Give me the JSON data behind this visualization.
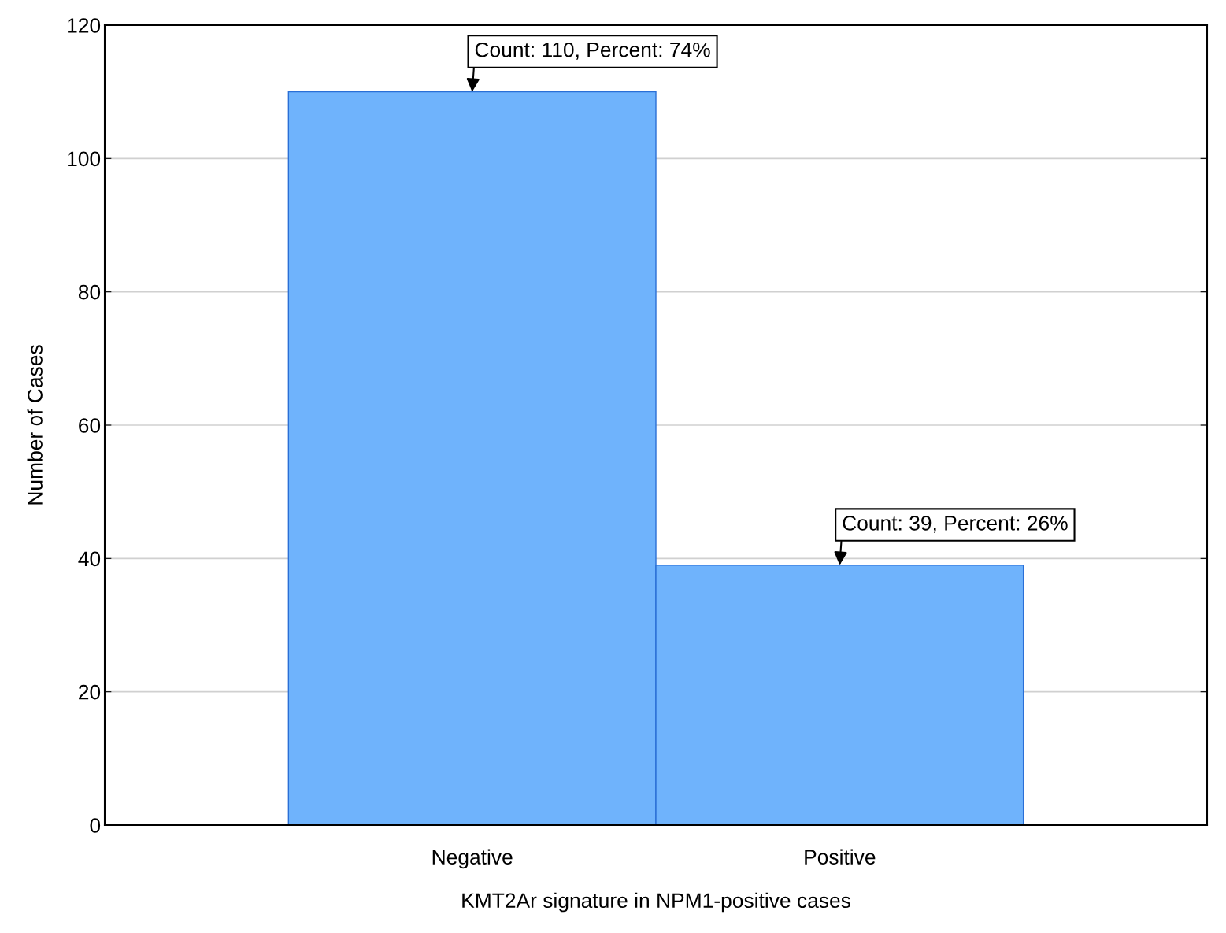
{
  "chart_data": {
    "type": "bar",
    "xlabel": "KMT2Ar signature in NPM1-positive cases",
    "ylabel": "Number of Cases",
    "categories": [
      "Negative",
      "Positive"
    ],
    "values": [
      110,
      39
    ],
    "color": "#6fb3fc",
    "ylim": [
      0,
      120
    ],
    "yticks": [
      0,
      20,
      40,
      60,
      80,
      100,
      120
    ],
    "grid": "y",
    "annotations": [
      {
        "text": "Count: 110, Percent: 74%",
        "x": "Negative",
        "y": 110
      },
      {
        "text": "Count: 39, Percent: 26%",
        "x": "Positive",
        "y": 39
      }
    ]
  }
}
